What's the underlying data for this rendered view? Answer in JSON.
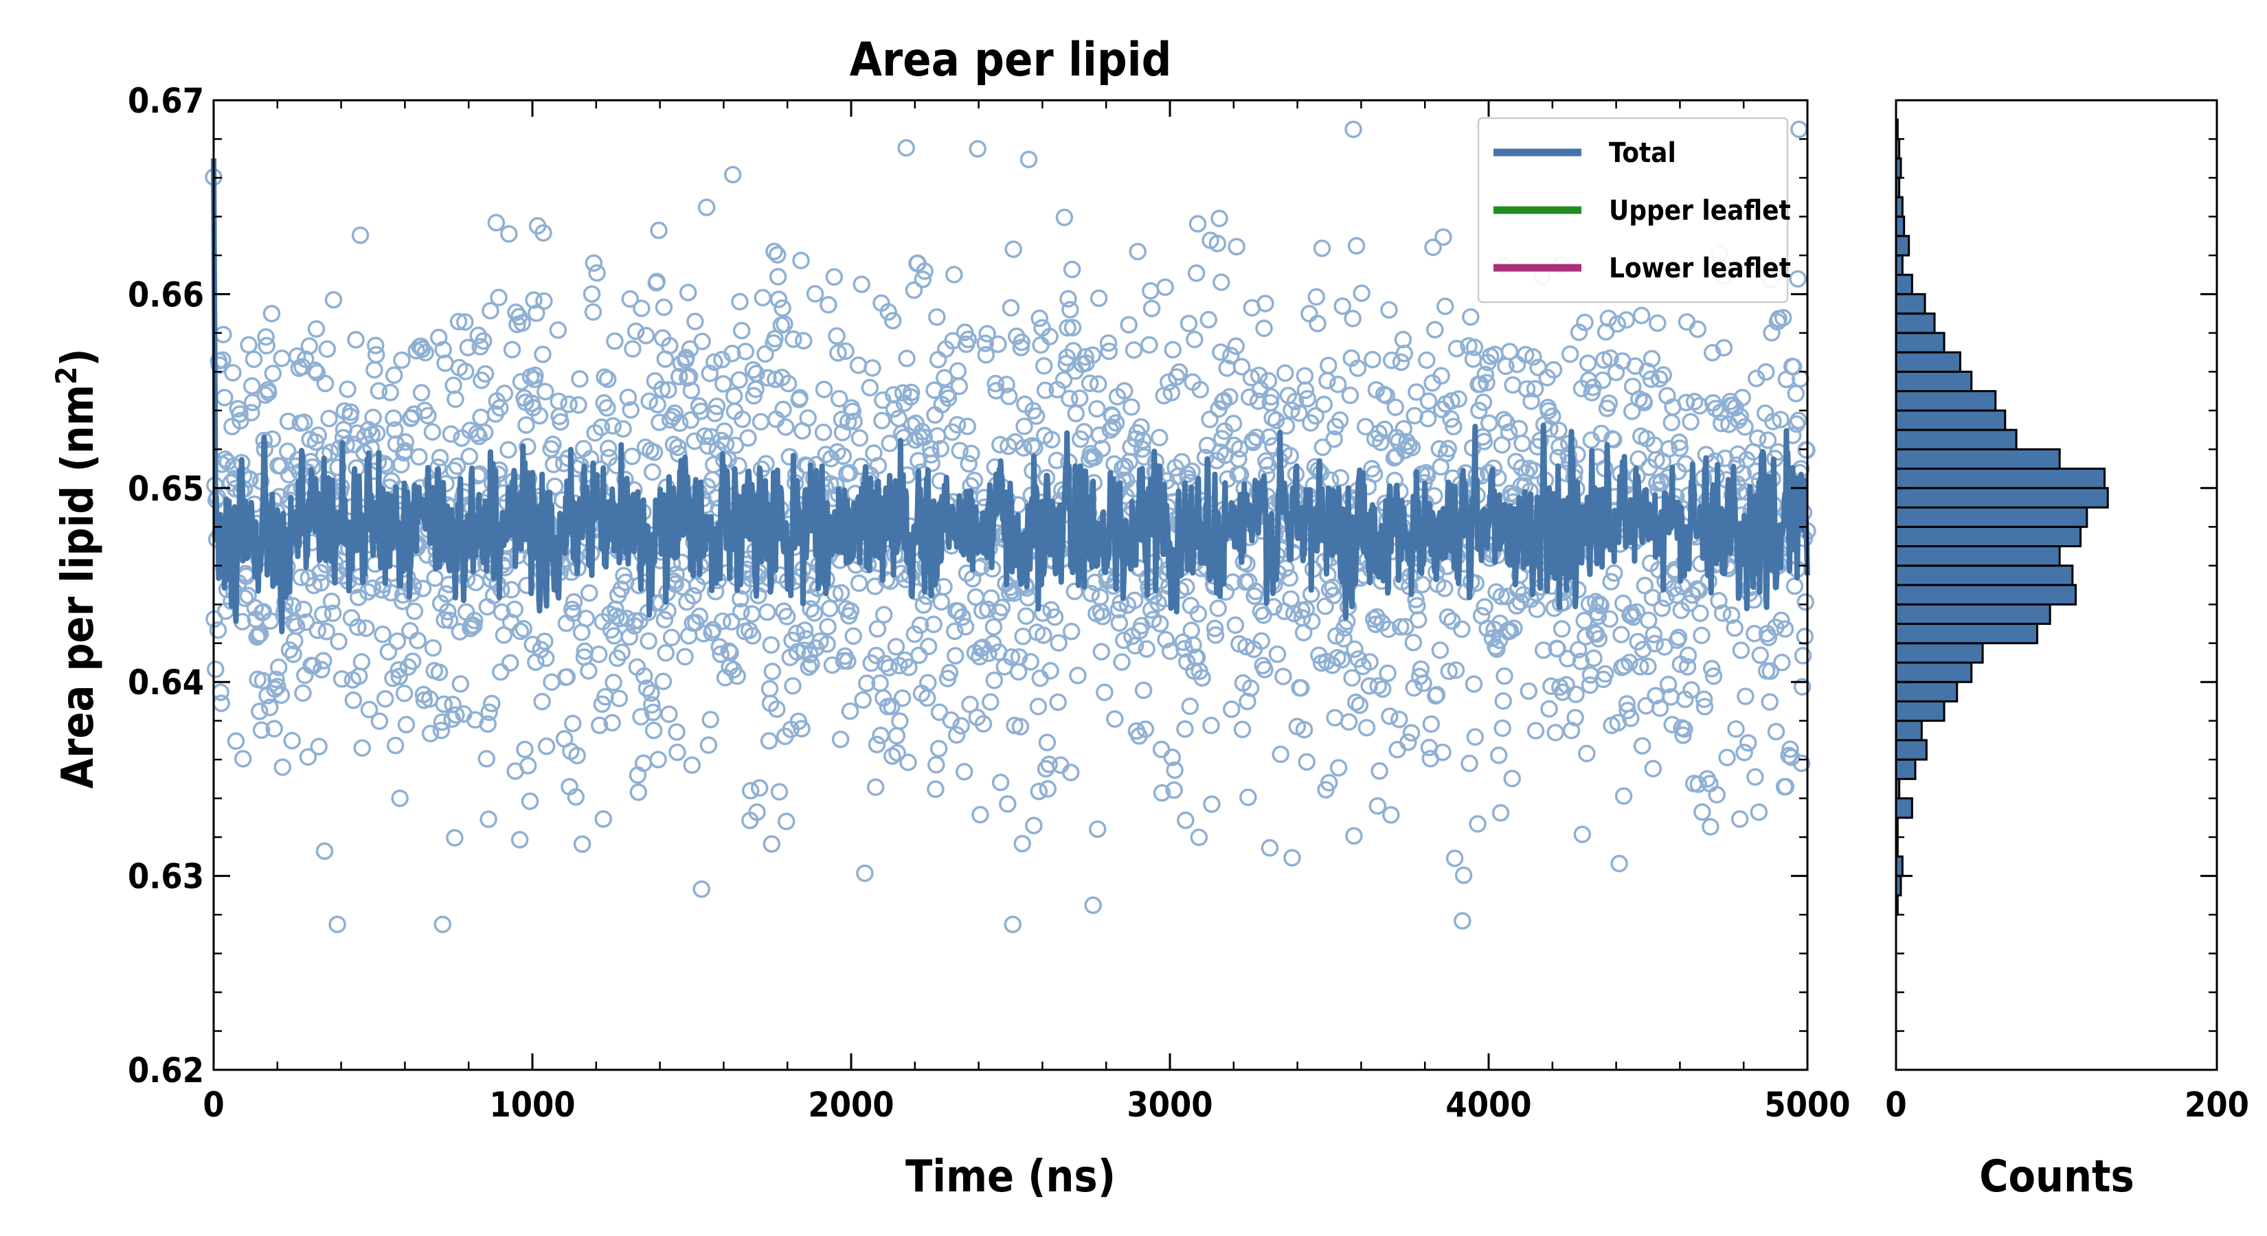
{
  "colors": {
    "total": "#4575a8",
    "upper": "#228b22",
    "lower": "#a83279",
    "scatter": "#8fb0d3",
    "hist_fill": "#4575a8",
    "hist_edge": "#000000"
  },
  "chart_data": [
    {
      "type": "line",
      "title": "Area per lipid",
      "xlabel": "Time (ns)",
      "ylabel_text": "Area per lipid (nm",
      "ylabel_sup": "2",
      "ylabel_close": ")",
      "xlim": [
        0,
        5000
      ],
      "ylim": [
        0.62,
        0.67
      ],
      "x_ticks": [
        0,
        1000,
        2000,
        3000,
        4000,
        5000
      ],
      "x_tick_labels": [
        "0",
        "1000",
        "2000",
        "3000",
        "4000",
        "5000"
      ],
      "y_ticks": [
        0.62,
        0.63,
        0.64,
        0.65,
        0.66,
        0.67
      ],
      "y_tick_labels": [
        "0.62",
        "0.63",
        "0.64",
        "0.65",
        "0.66",
        "0.67"
      ],
      "legend_position": "top-right",
      "series": [
        {
          "name": "Total",
          "color_key": "total",
          "style": "line + hollow-circle scatter",
          "mean": 0.648,
          "line_sd": 0.0016,
          "scatter_sd": 0.0065,
          "n_points": 2500
        },
        {
          "name": "Upper leaflet",
          "color_key": "upper"
        },
        {
          "name": "Lower leaflet",
          "color_key": "lower"
        }
      ]
    },
    {
      "type": "bar",
      "orientation": "horizontal",
      "xlabel": "Counts",
      "xlim": [
        0,
        200
      ],
      "ylim": [
        0.62,
        0.67
      ],
      "x_ticks": [
        0,
        200
      ],
      "x_tick_labels": [
        "0",
        "200"
      ],
      "bin_width": 0.001,
      "bins_start": [
        0.628,
        0.629,
        0.63,
        0.631,
        0.632,
        0.633,
        0.634,
        0.635,
        0.636,
        0.637,
        0.638,
        0.639,
        0.64,
        0.641,
        0.642,
        0.643,
        0.644,
        0.645,
        0.646,
        0.647,
        0.648,
        0.649,
        0.65,
        0.651,
        0.652,
        0.653,
        0.654,
        0.655,
        0.656,
        0.657,
        0.658,
        0.659,
        0.66,
        0.661,
        0.662,
        0.663,
        0.664,
        0.665,
        0.666,
        0.667,
        0.668
      ],
      "counts": [
        1,
        3,
        4,
        1,
        1,
        10,
        2,
        12,
        19,
        16,
        30,
        38,
        47,
        54,
        88,
        96,
        112,
        110,
        102,
        115,
        119,
        132,
        130,
        102,
        75,
        68,
        62,
        47,
        40,
        30,
        24,
        18,
        10,
        4,
        8,
        5,
        4,
        2,
        3,
        2,
        1
      ]
    }
  ]
}
